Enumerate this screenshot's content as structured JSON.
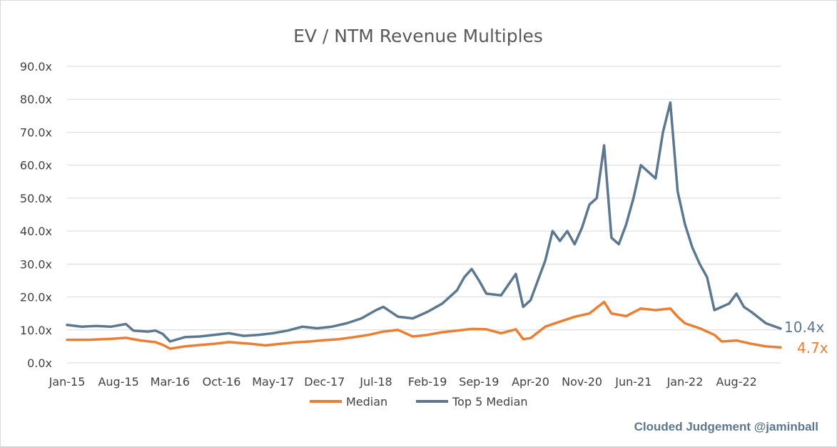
{
  "chart_data": {
    "type": "line",
    "title": "EV / NTM Revenue Multiples",
    "xlabel": "",
    "ylabel": "",
    "ylim": [
      0,
      90
    ],
    "y_ticks": [
      "0.0x",
      "10.0x",
      "20.0x",
      "30.0x",
      "40.0x",
      "50.0x",
      "60.0x",
      "70.0x",
      "80.0x",
      "90.0x"
    ],
    "x_ticks": [
      "Jan-15",
      "Aug-15",
      "Mar-16",
      "Oct-16",
      "May-17",
      "Dec-17",
      "Jul-18",
      "Feb-19",
      "Sep-19",
      "Apr-20",
      "Nov-20",
      "Jun-21",
      "Jan-22",
      "Aug-22"
    ],
    "xlim": [
      "2015-01",
      "2023-02"
    ],
    "grid": true,
    "legend_position": "bottom",
    "end_labels": {
      "Median": "4.7x",
      "Top 5 Median": "10.4x"
    },
    "credit": "Clouded Judgement @jaminball",
    "series": [
      {
        "name": "Median",
        "color": "#ed7d31",
        "points": [
          [
            "2015-01",
            7.0
          ],
          [
            "2015-04",
            7.0
          ],
          [
            "2015-07",
            7.3
          ],
          [
            "2015-09",
            7.6
          ],
          [
            "2015-11",
            6.8
          ],
          [
            "2016-01",
            6.3
          ],
          [
            "2016-02",
            5.5
          ],
          [
            "2016-03",
            4.3
          ],
          [
            "2016-05",
            5.0
          ],
          [
            "2016-07",
            5.4
          ],
          [
            "2016-09",
            5.8
          ],
          [
            "2016-11",
            6.3
          ],
          [
            "2017-02",
            5.8
          ],
          [
            "2017-04",
            5.3
          ],
          [
            "2017-06",
            5.8
          ],
          [
            "2017-08",
            6.2
          ],
          [
            "2017-10",
            6.5
          ],
          [
            "2017-12",
            6.9
          ],
          [
            "2018-02",
            7.2
          ],
          [
            "2018-04",
            7.8
          ],
          [
            "2018-06",
            8.5
          ],
          [
            "2018-08",
            9.5
          ],
          [
            "2018-10",
            10.0
          ],
          [
            "2018-12",
            8.0
          ],
          [
            "2019-02",
            8.5
          ],
          [
            "2019-04",
            9.3
          ],
          [
            "2019-06",
            9.8
          ],
          [
            "2019-08",
            10.3
          ],
          [
            "2019-10",
            10.2
          ],
          [
            "2019-12",
            9.0
          ],
          [
            "2020-02",
            10.2
          ],
          [
            "2020-03",
            7.2
          ],
          [
            "2020-04",
            7.5
          ],
          [
            "2020-06",
            11.0
          ],
          [
            "2020-08",
            12.5
          ],
          [
            "2020-10",
            14.0
          ],
          [
            "2020-12",
            15.0
          ],
          [
            "2021-02",
            18.5
          ],
          [
            "2021-03",
            15.0
          ],
          [
            "2021-05",
            14.2
          ],
          [
            "2021-07",
            16.5
          ],
          [
            "2021-09",
            16.0
          ],
          [
            "2021-11",
            16.5
          ],
          [
            "2021-12",
            14.0
          ],
          [
            "2022-01",
            12.0
          ],
          [
            "2022-03",
            10.5
          ],
          [
            "2022-05",
            8.5
          ],
          [
            "2022-06",
            6.5
          ],
          [
            "2022-08",
            6.8
          ],
          [
            "2022-10",
            5.8
          ],
          [
            "2022-12",
            5.0
          ],
          [
            "2023-02",
            4.7
          ]
        ]
      },
      {
        "name": "Top 5 Median",
        "color": "#5b7890",
        "points": [
          [
            "2015-01",
            11.5
          ],
          [
            "2015-03",
            11.0
          ],
          [
            "2015-05",
            11.2
          ],
          [
            "2015-07",
            11.0
          ],
          [
            "2015-09",
            11.8
          ],
          [
            "2015-10",
            9.8
          ],
          [
            "2015-12",
            9.5
          ],
          [
            "2016-01",
            9.8
          ],
          [
            "2016-02",
            8.8
          ],
          [
            "2016-03",
            6.5
          ],
          [
            "2016-05",
            7.8
          ],
          [
            "2016-07",
            8.0
          ],
          [
            "2016-09",
            8.5
          ],
          [
            "2016-11",
            9.0
          ],
          [
            "2017-01",
            8.2
          ],
          [
            "2017-03",
            8.5
          ],
          [
            "2017-05",
            9.0
          ],
          [
            "2017-07",
            9.8
          ],
          [
            "2017-09",
            11.0
          ],
          [
            "2017-11",
            10.5
          ],
          [
            "2018-01",
            11.0
          ],
          [
            "2018-03",
            12.0
          ],
          [
            "2018-05",
            13.5
          ],
          [
            "2018-07",
            16.0
          ],
          [
            "2018-08",
            17.0
          ],
          [
            "2018-10",
            14.0
          ],
          [
            "2018-12",
            13.5
          ],
          [
            "2019-02",
            15.5
          ],
          [
            "2019-04",
            18.0
          ],
          [
            "2019-06",
            22.0
          ],
          [
            "2019-07",
            26.0
          ],
          [
            "2019-08",
            28.5
          ],
          [
            "2019-09",
            25.0
          ],
          [
            "2019-10",
            21.0
          ],
          [
            "2019-12",
            20.5
          ],
          [
            "2020-02",
            27.0
          ],
          [
            "2020-03",
            17.0
          ],
          [
            "2020-04",
            19.0
          ],
          [
            "2020-05",
            25.0
          ],
          [
            "2020-06",
            31.0
          ],
          [
            "2020-07",
            40.0
          ],
          [
            "2020-08",
            37.0
          ],
          [
            "2020-09",
            40.0
          ],
          [
            "2020-10",
            36.0
          ],
          [
            "2020-11",
            41.0
          ],
          [
            "2020-12",
            48.0
          ],
          [
            "2021-01",
            50.0
          ],
          [
            "2021-02",
            66.0
          ],
          [
            "2021-03",
            38.0
          ],
          [
            "2021-04",
            36.0
          ],
          [
            "2021-05",
            42.0
          ],
          [
            "2021-06",
            50.0
          ],
          [
            "2021-07",
            60.0
          ],
          [
            "2021-08",
            58.0
          ],
          [
            "2021-09",
            56.0
          ],
          [
            "2021-10",
            70.0
          ],
          [
            "2021-11",
            79.0
          ],
          [
            "2021-12",
            52.0
          ],
          [
            "2022-01",
            42.0
          ],
          [
            "2022-02",
            35.0
          ],
          [
            "2022-03",
            30.0
          ],
          [
            "2022-04",
            26.0
          ],
          [
            "2022-05",
            16.0
          ],
          [
            "2022-06",
            17.0
          ],
          [
            "2022-07",
            18.0
          ],
          [
            "2022-08",
            21.0
          ],
          [
            "2022-09",
            17.0
          ],
          [
            "2022-10",
            15.5
          ],
          [
            "2022-12",
            12.0
          ],
          [
            "2023-02",
            10.4
          ]
        ]
      }
    ]
  },
  "colors": {
    "median": "#ed7d31",
    "top5": "#5b7890",
    "grid": "#d9d9d9",
    "credit": "#5b7890"
  }
}
